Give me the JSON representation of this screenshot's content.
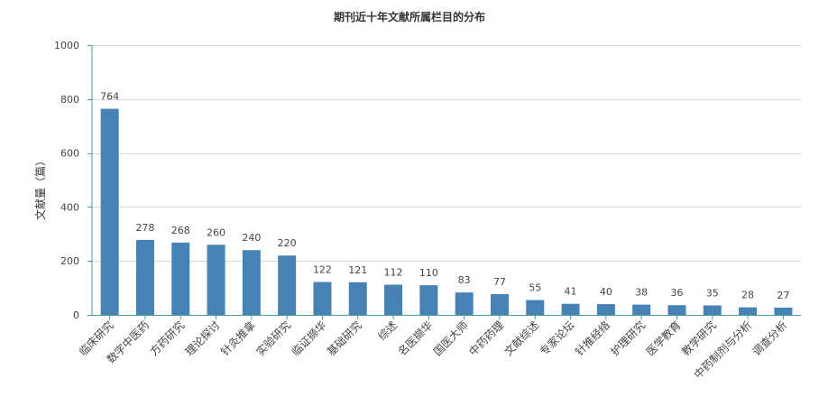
{
  "chart_data": {
    "type": "bar",
    "title": "期刊近十年文献所属栏目的分布",
    "xlabel": "",
    "ylabel": "文献量（篇）",
    "ylim": [
      0,
      1000
    ],
    "yticks": [
      0,
      200,
      400,
      600,
      800,
      1000
    ],
    "grid": true,
    "bar_color": "#4682b4",
    "categories": [
      "临床研究",
      "数字中医药",
      "方药研究",
      "理论探讨",
      "针灸推拿",
      "实验研究",
      "临证撷华",
      "基础研究",
      "综述",
      "名医撷华",
      "国医大师",
      "中药药理",
      "文献综述",
      "专家论坛",
      "针推经络",
      "护理研究",
      "医学教育",
      "教学研究",
      "中药制剂与分析",
      "调查分析"
    ],
    "values": [
      764,
      278,
      268,
      260,
      240,
      220,
      122,
      121,
      112,
      110,
      83,
      77,
      55,
      41,
      40,
      38,
      36,
      35,
      28,
      27
    ]
  }
}
